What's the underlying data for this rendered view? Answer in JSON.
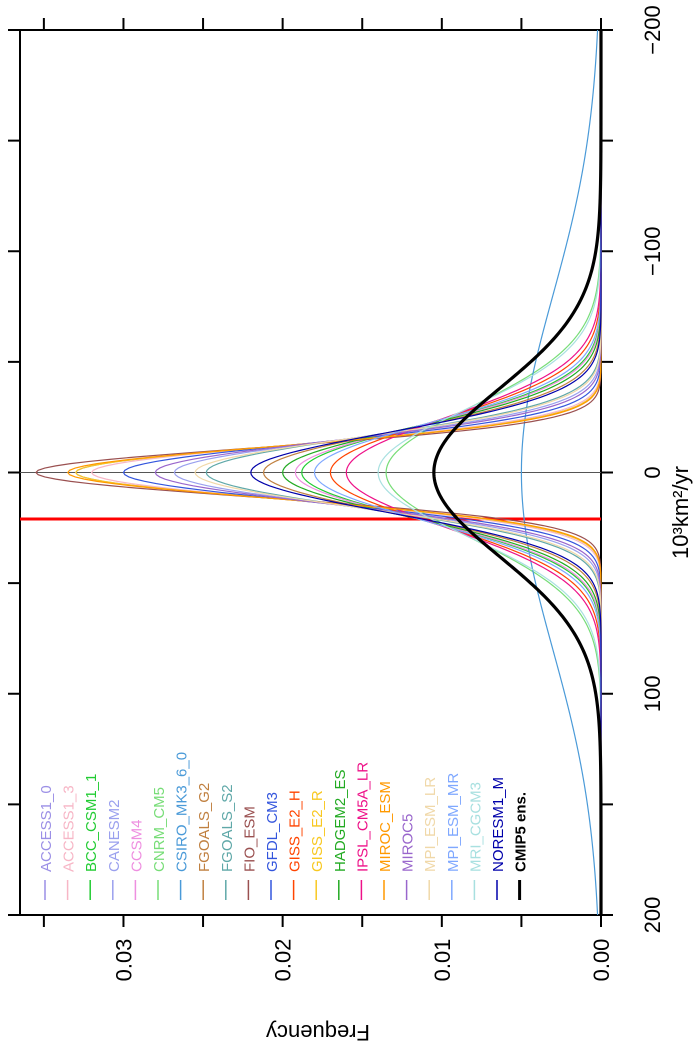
{
  "chart_data": {
    "type": "line",
    "title": "",
    "xlabel": "10³km²/yr",
    "ylabel": "Frequency",
    "xlim": [
      -200,
      200
    ],
    "ylim": [
      0,
      0.0365
    ],
    "x_ticks": [
      -200,
      -100,
      0,
      100,
      200
    ],
    "x_tick_labels": [
      "−200",
      "−100",
      "0",
      "100",
      "200"
    ],
    "y_ticks": [
      0,
      0.01,
      0.02,
      0.03
    ],
    "y_tick_labels": [
      "0.00",
      "0.01",
      "0.02",
      "0.03"
    ],
    "grid": false,
    "legend_position": "bottom-left",
    "reference_lines": [
      {
        "axis": "x",
        "value": 0,
        "color": "#555555"
      },
      {
        "axis": "x",
        "value": 21,
        "color": "#ff0000"
      }
    ],
    "curve_shape": "gaussian",
    "series": [
      {
        "name": "ACCESS1_0",
        "color": "#9b8fe6",
        "mean": 0,
        "peak": 0.033
      },
      {
        "name": "ACCESS1_3",
        "color": "#f7b6c6",
        "mean": 0,
        "peak": 0.032
      },
      {
        "name": "BCC_CSM1_1",
        "color": "#22cc33",
        "mean": 0,
        "peak": 0.0188
      },
      {
        "name": "CANESM2",
        "color": "#9aa0ee",
        "mean": 0,
        "peak": 0.0268
      },
      {
        "name": "CCSM4",
        "color": "#ee8fe0",
        "mean": 0,
        "peak": 0.0192
      },
      {
        "name": "CNRM_CM5",
        "color": "#77dd77",
        "mean": 0,
        "peak": 0.0135
      },
      {
        "name": "CSIRO_MK3_6_0",
        "color": "#4a9ad8",
        "mean": 0,
        "peak": 0.005
      },
      {
        "name": "FGOALS_G2",
        "color": "#c08040",
        "mean": 0,
        "peak": 0.0212
      },
      {
        "name": "FGOALS_S2",
        "color": "#5fa8a8",
        "mean": 0,
        "peak": 0.0248
      },
      {
        "name": "FIO_ESM",
        "color": "#9a5050",
        "mean": 0,
        "peak": 0.0355
      },
      {
        "name": "GFDL_CM3",
        "color": "#3355dd",
        "mean": 0,
        "peak": 0.03
      },
      {
        "name": "GISS_E2_H",
        "color": "#ff4400",
        "mean": 0,
        "peak": 0.017
      },
      {
        "name": "GISS_E2_R",
        "color": "#f8c820",
        "mean": 0,
        "peak": 0.033
      },
      {
        "name": "HADGEM2_ES",
        "color": "#22aa22",
        "mean": 0,
        "peak": 0.02
      },
      {
        "name": "IPSL_CM5A_LR",
        "color": "#ee1188",
        "mean": 0,
        "peak": 0.016
      },
      {
        "name": "MIROC_ESM",
        "color": "#ff9900",
        "mean": 0,
        "peak": 0.0335
      },
      {
        "name": "MIROC5",
        "color": "#9966cc",
        "mean": 0,
        "peak": 0.028
      },
      {
        "name": "MPI_ESM_LR",
        "color": "#f0d8a8",
        "mean": 0,
        "peak": 0.0255
      },
      {
        "name": "MPI_ESM_MR",
        "color": "#7fa8ff",
        "mean": 0,
        "peak": 0.018
      },
      {
        "name": "MRI_CGCM3",
        "color": "#a8e0e0",
        "mean": 0,
        "peak": 0.014
      },
      {
        "name": "NORESM1_M",
        "color": "#0000aa",
        "mean": 0,
        "peak": 0.022
      },
      {
        "name": "CMIP5 ens.",
        "color": "#000000",
        "mean": 0,
        "peak": 0.0105,
        "bold": true
      }
    ]
  }
}
